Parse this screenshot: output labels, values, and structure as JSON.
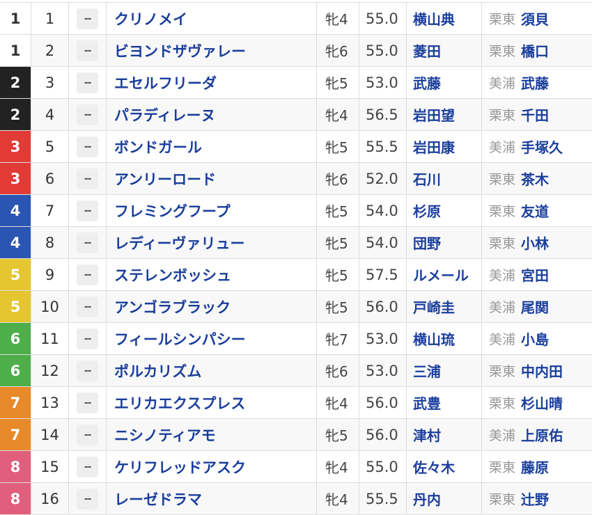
{
  "waku_colors": {
    "1": {
      "bg": "#ffffff",
      "fg": "#333333"
    },
    "2": {
      "bg": "#222222",
      "fg": "#ffffff"
    },
    "3": {
      "bg": "#e23b36",
      "fg": "#ffffff"
    },
    "4": {
      "bg": "#2b55b2",
      "fg": "#ffffff"
    },
    "5": {
      "bg": "#e5c630",
      "fg": "#ffffff"
    },
    "6": {
      "bg": "#4eae4a",
      "fg": "#ffffff"
    },
    "7": {
      "bg": "#e8892a",
      "fg": "#ffffff"
    },
    "8": {
      "bg": "#e15f7c",
      "fg": "#ffffff"
    }
  },
  "rows": [
    {
      "waku": "1",
      "umaban": "1",
      "mark": "--",
      "name": "クリノメイ",
      "sex_age": "牝4",
      "weight": "55.0",
      "jockey": "横山典",
      "area": "栗東",
      "trainer": "須貝"
    },
    {
      "waku": "1",
      "umaban": "2",
      "mark": "--",
      "name": "ビヨンドザヴァレー",
      "sex_age": "牝6",
      "weight": "55.0",
      "jockey": "菱田",
      "area": "栗東",
      "trainer": "橋口"
    },
    {
      "waku": "2",
      "umaban": "3",
      "mark": "--",
      "name": "エセルフリーダ",
      "sex_age": "牝5",
      "weight": "53.0",
      "jockey": "武藤",
      "area": "美浦",
      "trainer": "武藤"
    },
    {
      "waku": "2",
      "umaban": "4",
      "mark": "--",
      "name": "パラディレーヌ",
      "sex_age": "牝4",
      "weight": "56.5",
      "jockey": "岩田望",
      "area": "栗東",
      "trainer": "千田"
    },
    {
      "waku": "3",
      "umaban": "5",
      "mark": "--",
      "name": "ボンドガール",
      "sex_age": "牝5",
      "weight": "55.5",
      "jockey": "岩田康",
      "area": "美浦",
      "trainer": "手塚久"
    },
    {
      "waku": "3",
      "umaban": "6",
      "mark": "--",
      "name": "アンリーロード",
      "sex_age": "牝6",
      "weight": "52.0",
      "jockey": "石川",
      "area": "栗東",
      "trainer": "茶木"
    },
    {
      "waku": "4",
      "umaban": "7",
      "mark": "--",
      "name": "フレミングフープ",
      "sex_age": "牝5",
      "weight": "54.0",
      "jockey": "杉原",
      "area": "栗東",
      "trainer": "友道"
    },
    {
      "waku": "4",
      "umaban": "8",
      "mark": "--",
      "name": "レディーヴァリュー",
      "sex_age": "牝5",
      "weight": "54.0",
      "jockey": "団野",
      "area": "栗東",
      "trainer": "小林"
    },
    {
      "waku": "5",
      "umaban": "9",
      "mark": "--",
      "name": "ステレンボッシュ",
      "sex_age": "牝5",
      "weight": "57.5",
      "jockey": "ルメール",
      "area": "美浦",
      "trainer": "宮田"
    },
    {
      "waku": "5",
      "umaban": "10",
      "mark": "--",
      "name": "アンゴラブラック",
      "sex_age": "牝5",
      "weight": "56.0",
      "jockey": "戸崎圭",
      "area": "美浦",
      "trainer": "尾関"
    },
    {
      "waku": "6",
      "umaban": "11",
      "mark": "--",
      "name": "フィールシンパシー",
      "sex_age": "牝7",
      "weight": "53.0",
      "jockey": "横山琉",
      "area": "美浦",
      "trainer": "小島"
    },
    {
      "waku": "6",
      "umaban": "12",
      "mark": "--",
      "name": "ポルカリズム",
      "sex_age": "牝6",
      "weight": "53.0",
      "jockey": "三浦",
      "area": "栗東",
      "trainer": "中内田"
    },
    {
      "waku": "7",
      "umaban": "13",
      "mark": "--",
      "name": "エリカエクスプレス",
      "sex_age": "牝4",
      "weight": "56.0",
      "jockey": "武豊",
      "area": "栗東",
      "trainer": "杉山晴"
    },
    {
      "waku": "7",
      "umaban": "14",
      "mark": "--",
      "name": "ニシノティアモ",
      "sex_age": "牝5",
      "weight": "56.0",
      "jockey": "津村",
      "area": "美浦",
      "trainer": "上原佑"
    },
    {
      "waku": "8",
      "umaban": "15",
      "mark": "--",
      "name": "ケリフレッドアスク",
      "sex_age": "牝4",
      "weight": "55.0",
      "jockey": "佐々木",
      "area": "栗東",
      "trainer": "藤原"
    },
    {
      "waku": "8",
      "umaban": "16",
      "mark": "--",
      "name": "レーゼドラマ",
      "sex_age": "牝4",
      "weight": "55.5",
      "jockey": "丹内",
      "area": "栗東",
      "trainer": "辻野"
    }
  ]
}
